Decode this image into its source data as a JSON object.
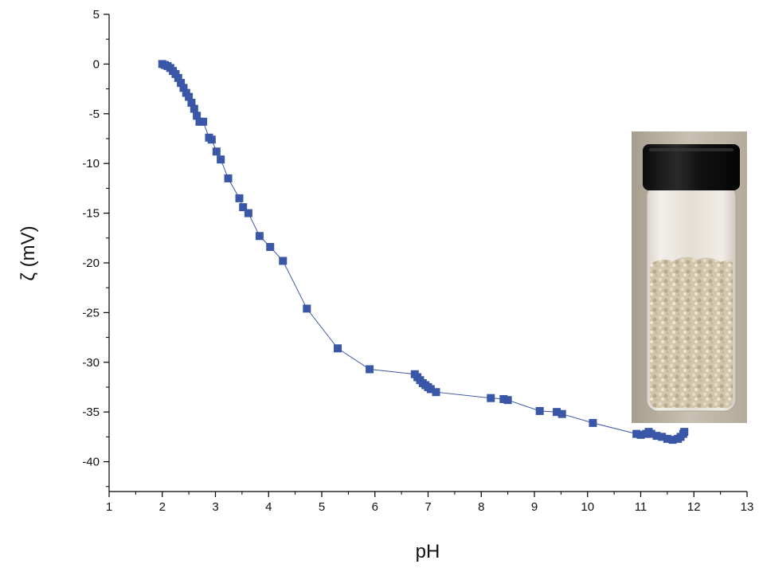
{
  "chart_data": {
    "type": "scatter",
    "xlabel": "pH",
    "ylabel": "ζ (mV)",
    "xlim": [
      1,
      13
    ],
    "ylim": [
      -43,
      5
    ],
    "x_ticks": [
      1,
      2,
      3,
      4,
      5,
      6,
      7,
      8,
      9,
      10,
      11,
      12,
      13
    ],
    "y_ticks": [
      5,
      0,
      -5,
      -10,
      -15,
      -20,
      -25,
      -30,
      -35,
      -40
    ],
    "grid": false,
    "marker": "square",
    "connected_line": true,
    "color": "#3a56a6",
    "inset": "photo-of-vial-with-beige-powder",
    "series": [
      {
        "x": [
          2.0,
          2.05,
          2.1,
          2.15,
          2.2,
          2.25,
          2.3,
          2.35,
          2.4,
          2.45,
          2.5,
          2.55,
          2.6,
          2.65,
          2.7,
          2.77,
          2.88,
          2.93,
          3.02,
          3.1,
          3.24,
          3.45,
          3.52,
          3.62,
          3.83,
          4.03,
          4.27,
          4.72,
          5.3,
          5.9,
          6.75,
          6.8,
          6.85,
          6.9,
          6.95,
          7.0,
          7.05,
          7.15,
          8.18,
          8.42,
          8.5,
          9.1,
          9.42,
          9.52,
          10.1,
          10.92,
          11.0,
          11.1,
          11.15,
          11.2,
          11.3,
          11.4,
          11.5,
          11.6,
          11.7,
          11.75,
          11.8,
          11.82
        ],
        "y": [
          0.0,
          -0.1,
          -0.2,
          -0.4,
          -0.7,
          -1.0,
          -1.4,
          -1.9,
          -2.4,
          -2.9,
          -3.3,
          -3.9,
          -4.5,
          -5.2,
          -5.8,
          -5.8,
          -7.4,
          -7.6,
          -8.8,
          -9.6,
          -11.5,
          -13.5,
          -14.4,
          -15.0,
          -17.3,
          -18.4,
          -19.8,
          -24.6,
          -28.6,
          -30.7,
          -31.2,
          -31.5,
          -31.8,
          -32.1,
          -32.3,
          -32.5,
          -32.7,
          -33.0,
          -33.6,
          -33.7,
          -33.8,
          -34.9,
          -35.0,
          -35.2,
          -36.1,
          -37.2,
          -37.3,
          -37.2,
          -37.0,
          -37.2,
          -37.4,
          -37.5,
          -37.7,
          -37.8,
          -37.7,
          -37.5,
          -37.2,
          -37.0
        ]
      }
    ]
  }
}
